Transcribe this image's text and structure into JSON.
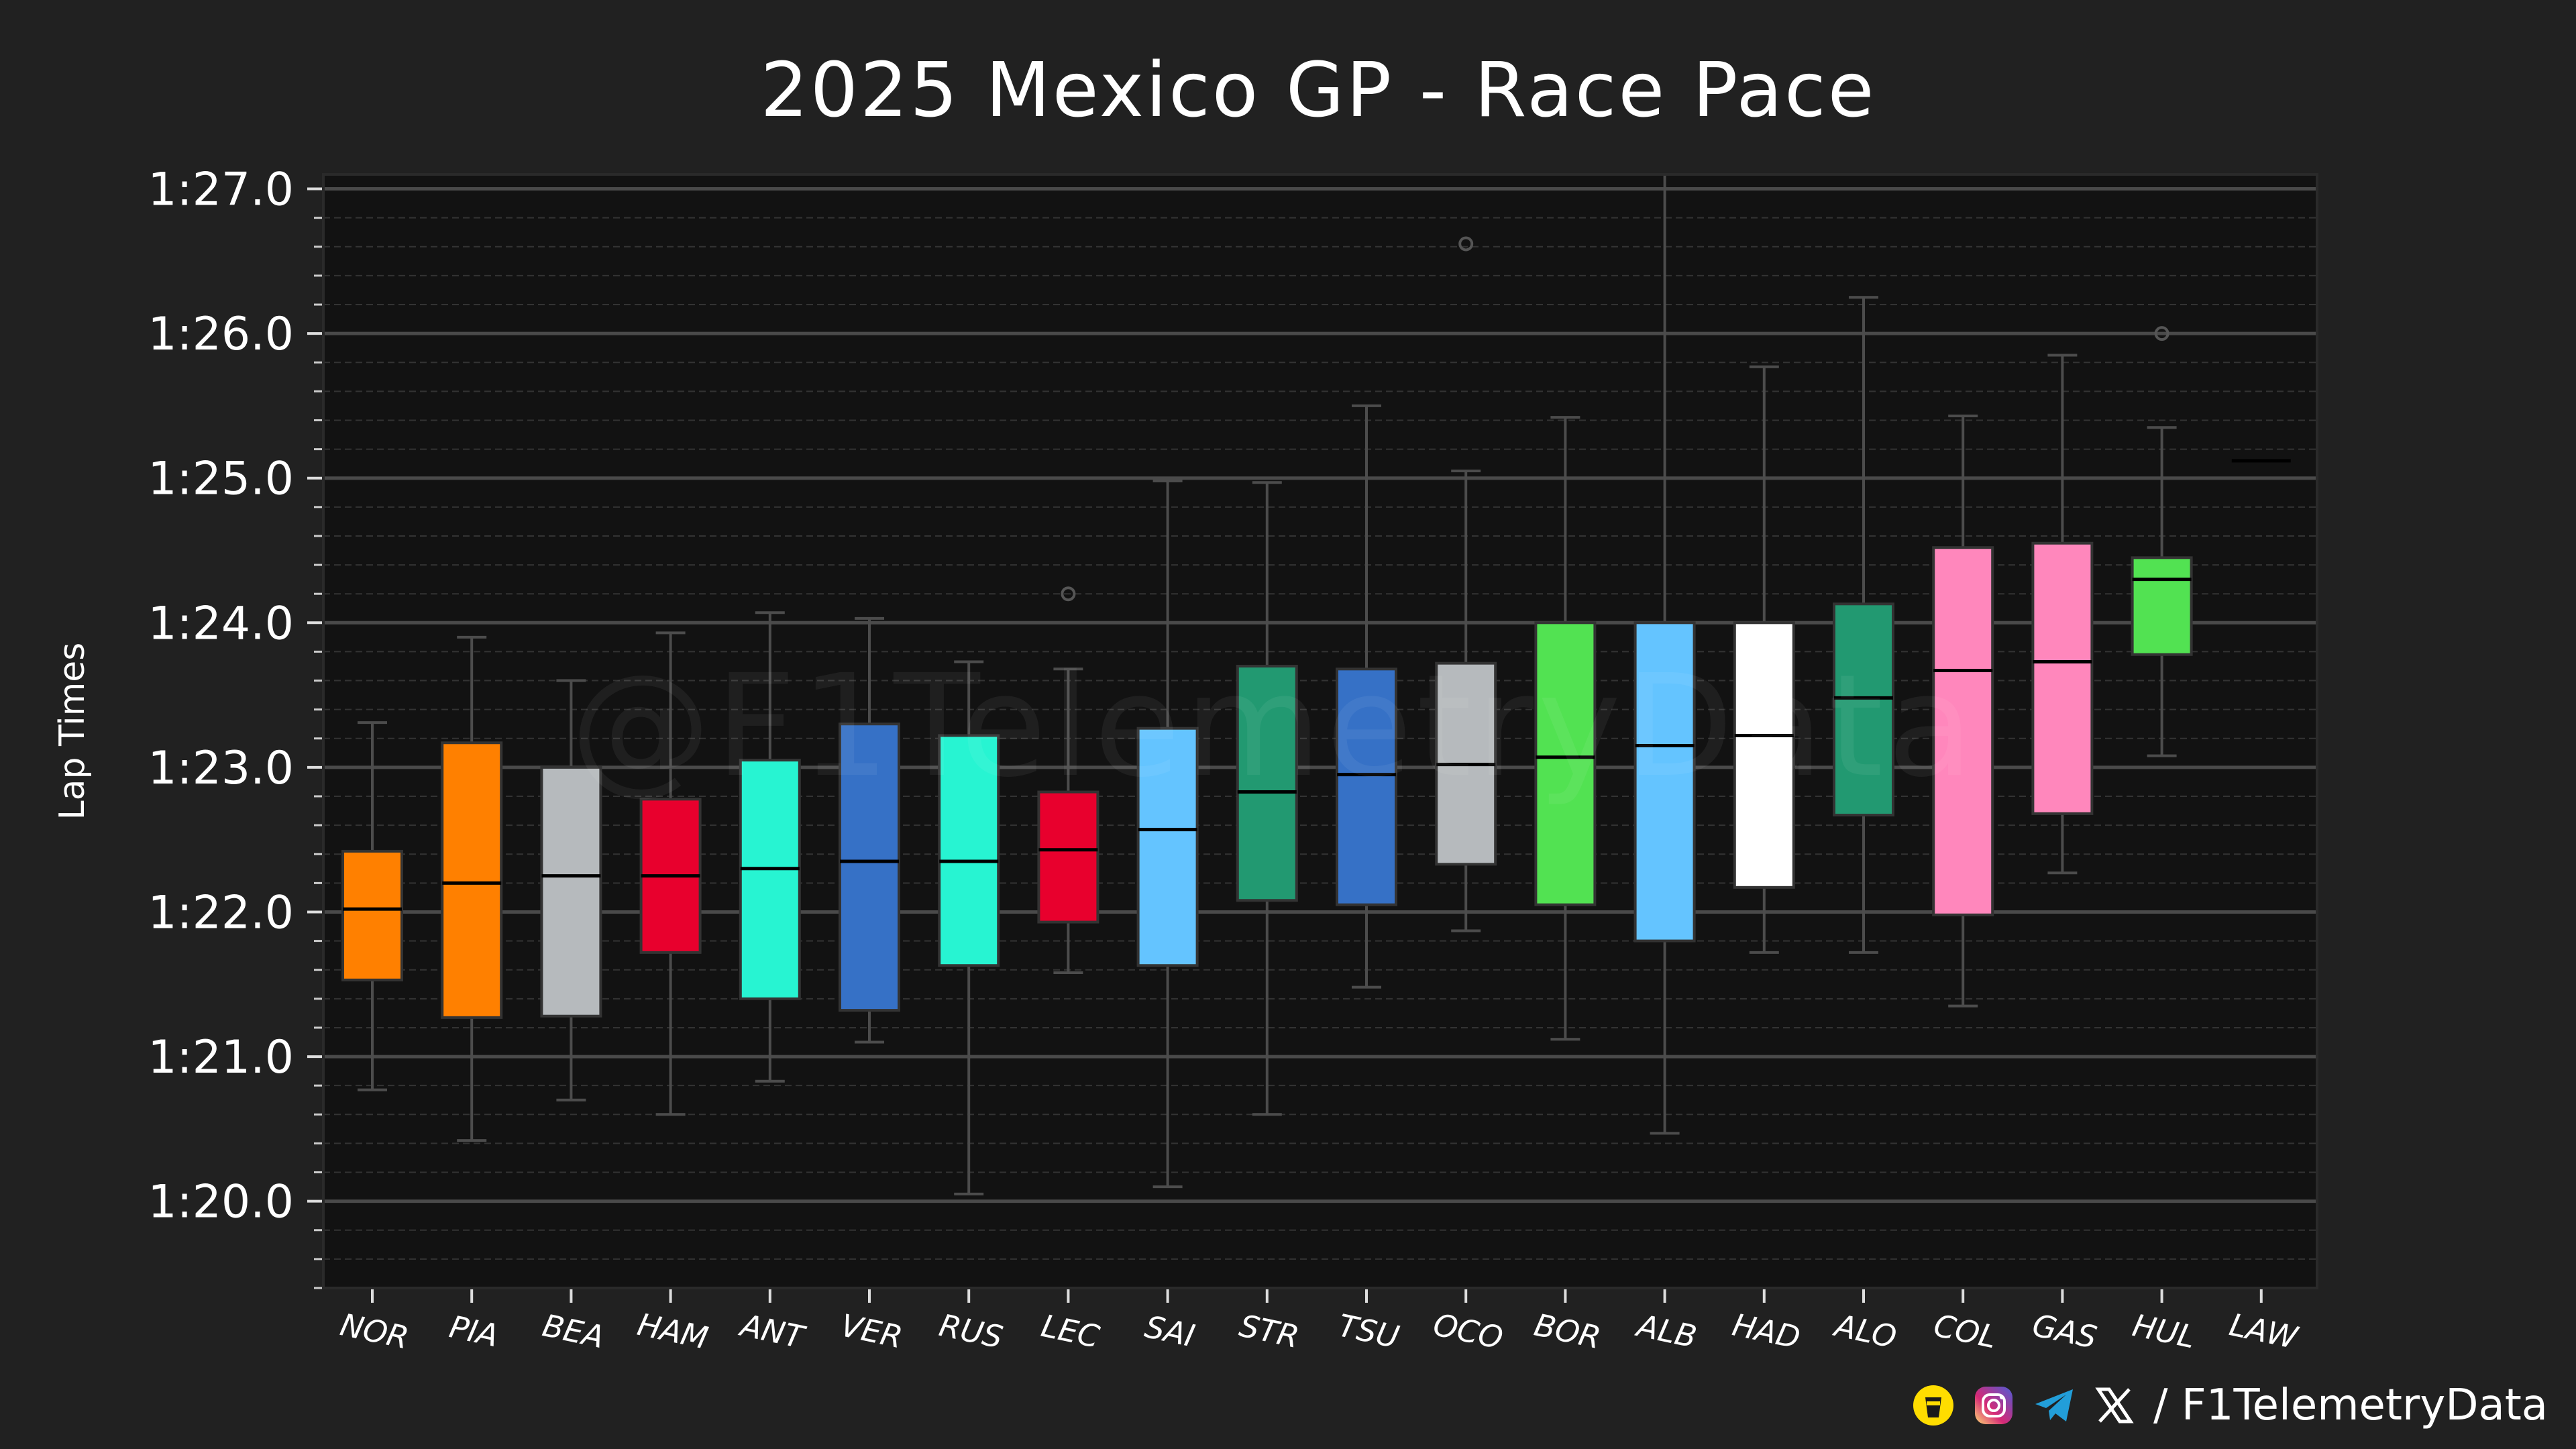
{
  "chart_data": {
    "type": "box",
    "title": "2025 Mexico GP - Race Pace",
    "xlabel": "",
    "ylabel": "Lap Times",
    "ylim": [
      79.4,
      87.1
    ],
    "ytick_values": [
      80,
      81,
      82,
      83,
      84,
      85,
      86,
      87
    ],
    "ytick_labels": [
      "1:20.0",
      "1:21.0",
      "1:22.0",
      "1:23.0",
      "1:24.0",
      "1:25.0",
      "1:26.0",
      "1:27.0"
    ],
    "grid": true,
    "series": [
      {
        "driver": "NOR",
        "color": "#FF8000",
        "whisker_low": 80.77,
        "q1": 81.53,
        "median": 82.02,
        "q3": 82.42,
        "whisker_high": 83.31,
        "outliers": []
      },
      {
        "driver": "PIA",
        "color": "#FF8000",
        "whisker_low": 80.42,
        "q1": 81.27,
        "median": 82.2,
        "q3": 83.17,
        "whisker_high": 83.9,
        "outliers": []
      },
      {
        "driver": "BEA",
        "color": "#B6BABD",
        "whisker_low": 80.7,
        "q1": 81.28,
        "median": 82.25,
        "q3": 83.0,
        "whisker_high": 83.6,
        "outliers": []
      },
      {
        "driver": "HAM",
        "color": "#E8002D",
        "whisker_low": 80.6,
        "q1": 81.72,
        "median": 82.25,
        "q3": 82.78,
        "whisker_high": 83.93,
        "outliers": []
      },
      {
        "driver": "ANT",
        "color": "#27F4D2",
        "whisker_low": 80.83,
        "q1": 81.4,
        "median": 82.3,
        "q3": 83.05,
        "whisker_high": 84.07,
        "outliers": []
      },
      {
        "driver": "VER",
        "color": "#3671C6",
        "whisker_low": 81.1,
        "q1": 81.32,
        "median": 82.35,
        "q3": 83.3,
        "whisker_high": 84.03,
        "outliers": []
      },
      {
        "driver": "RUS",
        "color": "#27F4D2",
        "whisker_low": 80.05,
        "q1": 81.63,
        "median": 82.35,
        "q3": 83.22,
        "whisker_high": 83.73,
        "outliers": []
      },
      {
        "driver": "LEC",
        "color": "#E8002D",
        "whisker_low": 81.58,
        "q1": 81.93,
        "median": 82.43,
        "q3": 82.83,
        "whisker_high": 83.68,
        "outliers": [
          84.2
        ]
      },
      {
        "driver": "SAI",
        "color": "#64C4FF",
        "whisker_low": 80.1,
        "q1": 81.63,
        "median": 82.57,
        "q3": 83.27,
        "whisker_high": 84.98,
        "outliers": []
      },
      {
        "driver": "STR",
        "color": "#229971",
        "whisker_low": 80.6,
        "q1": 82.08,
        "median": 82.83,
        "q3": 83.7,
        "whisker_high": 84.97,
        "outliers": []
      },
      {
        "driver": "TSU",
        "color": "#3671C6",
        "whisker_low": 81.48,
        "q1": 82.05,
        "median": 82.95,
        "q3": 83.68,
        "whisker_high": 85.5,
        "outliers": []
      },
      {
        "driver": "OCO",
        "color": "#B6BABD",
        "whisker_low": 81.87,
        "q1": 82.33,
        "median": 83.02,
        "q3": 83.72,
        "whisker_high": 85.05,
        "outliers": [
          86.62
        ]
      },
      {
        "driver": "BOR",
        "color": "#52E252",
        "whisker_low": 81.12,
        "q1": 82.05,
        "median": 83.07,
        "q3": 84.0,
        "whisker_high": 85.42,
        "outliers": []
      },
      {
        "driver": "ALB",
        "color": "#64C4FF",
        "whisker_low": 80.47,
        "q1": 81.8,
        "median": 83.15,
        "q3": 84.0,
        "whisker_high": 87.4,
        "outliers": []
      },
      {
        "driver": "HAD",
        "color": "#FFFFFF",
        "whisker_low": 81.72,
        "q1": 82.17,
        "median": 83.22,
        "q3": 84.0,
        "whisker_high": 85.77,
        "outliers": []
      },
      {
        "driver": "ALO",
        "color": "#229971",
        "whisker_low": 81.72,
        "q1": 82.67,
        "median": 83.48,
        "q3": 84.13,
        "whisker_high": 86.25,
        "outliers": []
      },
      {
        "driver": "COL",
        "color": "#FF87BC",
        "whisker_low": 81.35,
        "q1": 81.98,
        "median": 83.67,
        "q3": 84.52,
        "whisker_high": 85.43,
        "outliers": []
      },
      {
        "driver": "GAS",
        "color": "#FF87BC",
        "whisker_low": 82.27,
        "q1": 82.68,
        "median": 83.73,
        "q3": 84.55,
        "whisker_high": 85.85,
        "outliers": []
      },
      {
        "driver": "HUL",
        "color": "#52E252",
        "whisker_low": 83.08,
        "q1": 83.78,
        "median": 84.3,
        "q3": 84.45,
        "whisker_high": 85.35,
        "outliers": [
          86.0
        ]
      },
      {
        "driver": "LAW",
        "color": "#6692FF",
        "whisker_low": 85.12,
        "q1": 85.12,
        "median": 85.12,
        "q3": 85.12,
        "whisker_high": 85.12,
        "outliers": []
      }
    ]
  },
  "watermark": "@F1TelemetryData",
  "footer": {
    "handle": "/ F1TelemetryData",
    "icons": [
      "coffee-cup-icon",
      "instagram-icon",
      "telegram-icon",
      "x-icon"
    ],
    "icon_colors": {
      "coffee": "#FFDD00",
      "telegram": "#229ED9"
    }
  },
  "colors": {
    "background": "#212121",
    "plot_background": "#121212",
    "grid_major": "#4a4a4a",
    "grid_minor": "#333333",
    "whisker": "#4c4c4c",
    "median": "#000000"
  }
}
